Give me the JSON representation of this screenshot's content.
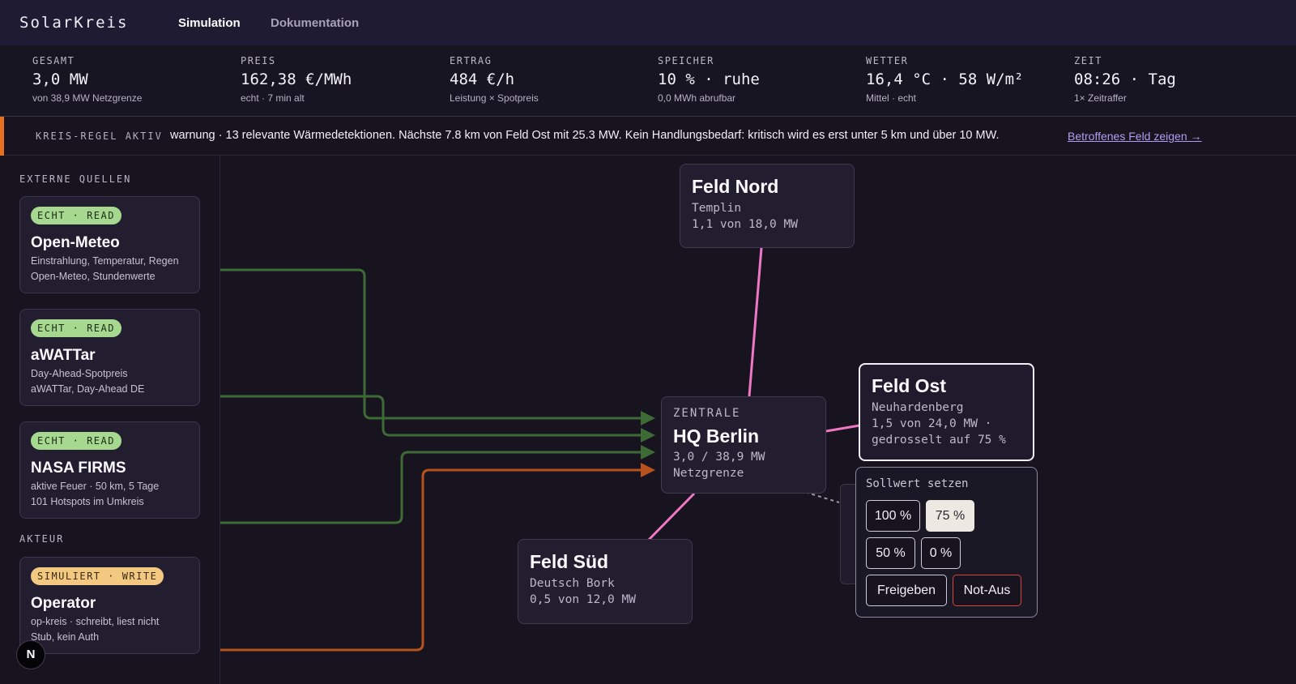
{
  "app": {
    "title": "SolarKreis"
  },
  "nav": {
    "active": "Simulation",
    "inactive": "Dokumentation"
  },
  "stats": [
    {
      "label": "GESAMT",
      "value": "3,0 MW",
      "sub": "von 38,9 MW Netzgrenze"
    },
    {
      "label": "PREIS",
      "value": "162,38 €/MWh",
      "sub": "echt · 7 min alt"
    },
    {
      "label": "ERTRAG",
      "value": "484 €/h",
      "sub": "Leistung × Spotpreis"
    },
    {
      "label": "SPEICHER",
      "value": "10 % · ruhe",
      "sub": "0,0 MWh abrufbar"
    },
    {
      "label": "WETTER",
      "value": "16,4 °C · 58 W/m²",
      "sub": "Mittel · echt"
    },
    {
      "label": "ZEIT",
      "value": "08:26 · Tag",
      "sub": "1× Zeitraffer"
    }
  ],
  "alert": {
    "tag": "KREIS-REGEL AKTIV",
    "message": "warnung · 13 relevante Wärmedetektionen. Nächste 7.8 km von Feld Ost mit 25.3 MW. Kein Handlungsbedarf: kritisch wird es erst unter 5 km und über 10 MW.",
    "link": "Betroffenes Feld zeigen →",
    "color": "#e5711f"
  },
  "sidebar": {
    "sources_header": "EXTERNE QUELLEN",
    "sources": [
      {
        "badge": "ECHT · READ",
        "name": "Open-Meteo",
        "line1": "Einstrahlung, Temperatur, Regen",
        "line2": "Open-Meteo, Stundenwerte"
      },
      {
        "badge": "ECHT · READ",
        "name": "aWATTar",
        "line1": "Day-Ahead-Spotpreis",
        "line2": "aWATTar, Day-Ahead DE"
      },
      {
        "badge": "ECHT · READ",
        "name": "NASA FIRMS",
        "line1": "aktive Feuer · 50 km, 5 Tage",
        "line2": "101 Hotspots im Umkreis"
      }
    ],
    "actor_header": "AKTEUR",
    "actor": {
      "badge": "SIMULIERT · WRITE",
      "name": "Operator",
      "line1": "op-kreis · schreibt, liest nicht",
      "line2": "Stub, kein Auth"
    },
    "n_button": "N"
  },
  "nodes": {
    "nord": {
      "title": "Feld Nord",
      "loc": "Templin",
      "power": "1,1 von 18,0 MW"
    },
    "zentrale": {
      "kicker": "ZENTRALE",
      "title": "HQ Berlin",
      "power": "3,0 / 38,9 MW",
      "limit": "Netzgrenze"
    },
    "ost": {
      "title": "Feld Ost",
      "loc": "Neuhardenberg",
      "power": "1,5 von 24,0 MW ·",
      "status": "gedrosselt auf 75 %"
    },
    "sued": {
      "title": "Feld Süd",
      "loc": "Deutsch Bork",
      "power": "0,5 von 12,0 MW"
    }
  },
  "setpoint": {
    "header": "Sollwert setzen",
    "options": [
      "100 %",
      "75 %",
      "50 %",
      "0 %"
    ],
    "selected": "75 %",
    "release": "Freigeben",
    "emergency": "Not-Aus"
  },
  "colors": {
    "wire_green": "#3e6b35",
    "wire_orange": "#b8521c",
    "link_pink": "#ee77c6",
    "accent_link": "#b29cf3"
  }
}
